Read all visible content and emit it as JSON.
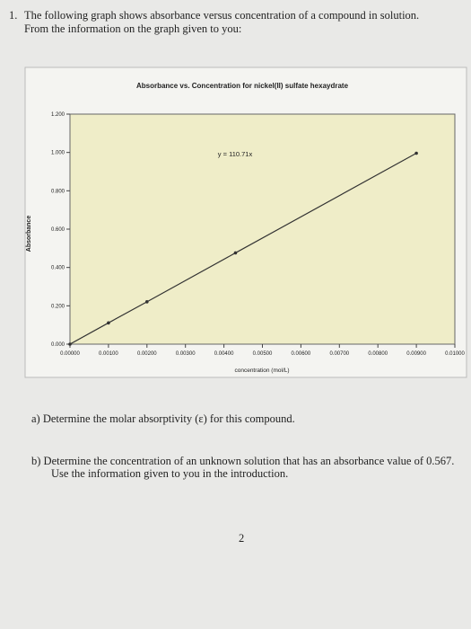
{
  "document": {
    "number": "1.",
    "intro": [
      "The following graph shows absorbance versus concentration of a compound in solution.",
      "From the information on the graph given to you:"
    ],
    "questions": [
      "a) Determine the molar absorptivity (ε) for this compound.",
      [
        "b) Determine the concentration of an unknown solution that has an absorbance value of 0.567.",
        "Use the information given to you in the introduction."
      ]
    ],
    "page_number": "2"
  },
  "chart_data": {
    "type": "line",
    "title": "Absorbance vs. Concentration for nickel(II) sulfate hexaydrate",
    "x_label": "concentration (mol/L)",
    "y_label": "Absorbance",
    "annotation": "y = 110.71x",
    "x": [
      0,
      0.001,
      0.002,
      0.0043,
      0.009
    ],
    "series": [
      {
        "color": "#333333",
        "values": [
          0,
          0.111,
          0.221,
          0.476,
          0.996
        ]
      }
    ],
    "xlim": [
      0,
      0.01
    ],
    "ylim": [
      0,
      1.2
    ],
    "xticks": [
      {
        "value": 0,
        "label": "0.00000"
      },
      {
        "value": 0.001,
        "label": "0.00100"
      },
      {
        "value": 0.002,
        "label": "0.00200"
      },
      {
        "value": 0.003,
        "label": "0.00300"
      },
      {
        "value": 0.004,
        "label": "0.00400"
      },
      {
        "value": 0.005,
        "label": "0.00500"
      },
      {
        "value": 0.006,
        "label": "0.00600"
      },
      {
        "value": 0.007,
        "label": "0.00700"
      },
      {
        "value": 0.008,
        "label": "0.00800"
      },
      {
        "value": 0.009,
        "label": "0.00900"
      },
      {
        "value": 0.01,
        "label": "0.01000"
      }
    ],
    "yticks": [
      {
        "value": 0,
        "label": "0.000"
      },
      {
        "value": 0.2,
        "label": "0.200"
      },
      {
        "value": 0.4,
        "label": "0.400"
      },
      {
        "value": 0.6,
        "label": "0.600"
      },
      {
        "value": 0.8,
        "label": "0.800"
      },
      {
        "value": 1,
        "label": "1.000"
      },
      {
        "value": 1.2,
        "label": "1.200"
      }
    ],
    "plot_color": "#efedc8"
  }
}
